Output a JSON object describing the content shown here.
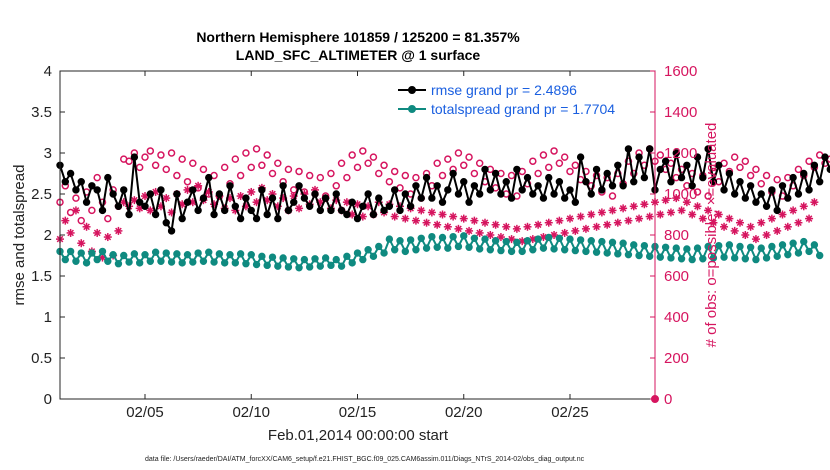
{
  "chart_data": {
    "type": "line",
    "title": "Northern Hemisphere 101859 / 125200 = 81.357%",
    "subtitle": "LAND_SFC_ALTIMETER @ 1 surface",
    "xlabel": "Feb.01,2014 00:00:00 start",
    "ylabel": "rmse and totalspread",
    "ylabel_right": "# of obs: o=possible; ×=evaluated",
    "ylim": [
      0,
      4
    ],
    "ylim_right": [
      0,
      1600
    ],
    "xlim": [
      1,
      29
    ],
    "yticks": [
      "0",
      "0.5",
      "1",
      "1.5",
      "2",
      "2.5",
      "3",
      "3.5",
      "4"
    ],
    "yticks_right": [
      "0",
      "200",
      "400",
      "600",
      "800",
      "1000",
      "1200",
      "1400",
      "1600"
    ],
    "xticks": [
      {
        "x": 5,
        "label": "02/05"
      },
      {
        "x": 10,
        "label": "02/10"
      },
      {
        "x": 15,
        "label": "02/15"
      },
      {
        "x": 20,
        "label": "02/20"
      },
      {
        "x": 25,
        "label": "02/25"
      }
    ],
    "legend_position": "top-right",
    "legend": [
      {
        "label": "rmse grand pr = 2.4896"
      },
      {
        "label": "totalspread grand pr = 1.7704"
      }
    ],
    "colors": {
      "rmse": "#000000",
      "spread": "#0f8a80",
      "obs": "#d6155f",
      "legend_text": "#1a5fe0"
    },
    "time_start": 1,
    "time_step": 0.25,
    "series": [
      {
        "name": "rmse grand pr = 2.4896",
        "axis": "left",
        "values": [
          2.85,
          2.65,
          2.75,
          2.55,
          2.65,
          2.4,
          2.6,
          2.55,
          2.3,
          2.7,
          2.5,
          2.35,
          2.55,
          2.25,
          2.95,
          2.4,
          2.35,
          2.5,
          2.25,
          2.55,
          2.15,
          2.05,
          2.5,
          2.2,
          2.4,
          2.55,
          2.3,
          2.45,
          2.7,
          2.25,
          2.5,
          2.3,
          2.6,
          2.35,
          2.2,
          2.45,
          2.3,
          2.2,
          2.55,
          2.25,
          2.45,
          2.2,
          2.6,
          2.3,
          2.4,
          2.6,
          2.45,
          2.35,
          2.5,
          2.3,
          2.45,
          2.3,
          2.5,
          2.3,
          2.25,
          2.4,
          2.2,
          2.35,
          2.5,
          2.25,
          2.45,
          2.3,
          2.35,
          2.55,
          2.3,
          2.5,
          2.35,
          2.6,
          2.45,
          2.7,
          2.45,
          2.6,
          2.4,
          2.55,
          2.75,
          2.5,
          2.65,
          2.4,
          2.6,
          2.5,
          2.8,
          2.55,
          2.75,
          2.5,
          2.65,
          2.45,
          2.8,
          2.55,
          2.7,
          2.5,
          2.6,
          2.45,
          2.7,
          2.5,
          2.65,
          2.45,
          2.55,
          2.4,
          2.95,
          2.65,
          2.5,
          2.8,
          2.55,
          2.75,
          2.6,
          2.85,
          2.6,
          3.05,
          2.65,
          2.95,
          2.7,
          3.05,
          2.55,
          2.8,
          2.9,
          2.65,
          3.0,
          2.7,
          2.85,
          2.6,
          2.95,
          2.7,
          3.05,
          2.65,
          2.85,
          2.55,
          2.75,
          2.5,
          2.65,
          2.45,
          2.6,
          2.4,
          2.5,
          2.35,
          2.55,
          2.3,
          2.6,
          2.45,
          2.7,
          2.5,
          2.75,
          2.55,
          2.85,
          2.65,
          2.95,
          2.8,
          2.9
        ]
      },
      {
        "name": "totalspread grand pr = 1.7704",
        "axis": "left",
        "values": [
          1.8,
          1.7,
          1.8,
          1.68,
          1.78,
          1.66,
          1.78,
          1.7,
          1.8,
          1.68,
          1.76,
          1.65,
          1.75,
          1.67,
          1.77,
          1.66,
          1.76,
          1.68,
          1.79,
          1.68,
          1.78,
          1.67,
          1.77,
          1.66,
          1.76,
          1.67,
          1.78,
          1.68,
          1.79,
          1.67,
          1.77,
          1.66,
          1.76,
          1.66,
          1.77,
          1.65,
          1.76,
          1.64,
          1.74,
          1.63,
          1.73,
          1.62,
          1.72,
          1.61,
          1.71,
          1.6,
          1.7,
          1.61,
          1.71,
          1.62,
          1.72,
          1.63,
          1.7,
          1.62,
          1.74,
          1.66,
          1.78,
          1.7,
          1.82,
          1.74,
          1.86,
          1.78,
          1.95,
          1.82,
          1.93,
          1.8,
          1.94,
          1.82,
          1.96,
          1.84,
          1.98,
          1.85,
          1.97,
          1.84,
          1.98,
          1.86,
          1.99,
          1.85,
          1.96,
          1.83,
          1.95,
          1.82,
          1.93,
          1.81,
          1.92,
          1.8,
          1.91,
          1.8,
          1.93,
          1.82,
          1.95,
          1.84,
          1.97,
          1.83,
          1.96,
          1.82,
          1.95,
          1.81,
          1.94,
          1.8,
          1.93,
          1.79,
          1.92,
          1.78,
          1.91,
          1.77,
          1.9,
          1.76,
          1.88,
          1.75,
          1.87,
          1.74,
          1.86,
          1.73,
          1.85,
          1.72,
          1.84,
          1.71,
          1.83,
          1.7,
          1.84,
          1.71,
          1.86,
          1.72,
          1.87,
          1.73,
          1.88,
          1.72,
          1.86,
          1.71,
          1.85,
          1.7,
          1.84,
          1.72,
          1.86,
          1.74,
          1.88,
          1.76,
          1.9,
          1.78,
          1.92,
          1.8,
          1.88,
          1.75
        ]
      },
      {
        "name": "possible",
        "axis": "right",
        "marker": "circle",
        "values": [
          960,
          1040,
          910,
          980,
          870,
          1010,
          920,
          1080,
          960,
          880,
          1020,
          940,
          1170,
          1160,
          1200,
          1130,
          1180,
          1210,
          1140,
          1190,
          1120,
          1200,
          1090,
          1170,
          1060,
          1150,
          1030,
          1120,
          1000,
          1090,
          990,
          1130,
          1050,
          1170,
          1090,
          1200,
          1130,
          1220,
          1140,
          1190,
          1100,
          1150,
          1060,
          1120,
          1020,
          1110,
          1010,
          1090,
          1000,
          1080,
          990,
          1100,
          1040,
          1150,
          1080,
          1190,
          1130,
          1210,
          1150,
          1180,
          1100,
          1140,
          1060,
          1110,
          1030,
          1090,
          1000,
          1080,
          980,
          1100,
          1040,
          1150,
          1090,
          1170,
          1120,
          1200,
          1140,
          1180,
          1100,
          1150,
          1060,
          1120,
          1030,
          1100,
          1000,
          1090,
          990,
          1110,
          1050,
          1160,
          1100,
          1190,
          1130,
          1210,
          1150,
          1180,
          1110,
          1140,
          1070,
          1110,
          1040,
          1090,
          1010,
          1080,
          990,
          1100,
          1050,
          1160,
          1100,
          1200,
          1140,
          1220,
          1160,
          1190,
          1120,
          1150,
          1080,
          1120,
          1040,
          1100,
          1010,
          1090,
          990,
          1110,
          1060,
          1150,
          1110,
          1180,
          1130,
          1160,
          1090,
          1120,
          1050,
          1090,
          1010,
          1070,
          990,
          1080,
          1040,
          1120,
          1090,
          1160,
          1130,
          1190,
          1150,
          1170
        ]
      },
      {
        "name": "evaluated",
        "axis": "right",
        "marker": "asterisk",
        "values": [
          780,
          870,
          810,
          920,
          760,
          840,
          720,
          810,
          690,
          790,
          700,
          820,
          960,
          940,
          970,
          930,
          990,
          920,
          1010,
          940,
          980,
          910,
          1000,
          950,
          1020,
          960,
          1040,
          970,
          1010,
          950,
          990,
          930,
          980,
          920,
          990,
          940,
          1010,
          960,
          1030,
          970,
          1000,
          940,
          980,
          920,
          990,
          930,
          1000,
          950,
          1020,
          960,
          980,
          930,
          970,
          920,
          960,
          900,
          950,
          890,
          940,
          900,
          960,
          910,
          950,
          890,
          940,
          880,
          930,
          870,
          920,
          860,
          910,
          850,
          900,
          840,
          890,
          830,
          880,
          820,
          870,
          810,
          860,
          800,
          850,
          790,
          840,
          780,
          830,
          770,
          840,
          780,
          850,
          790,
          860,
          800,
          870,
          810,
          880,
          820,
          890,
          830,
          900,
          840,
          910,
          850,
          920,
          860,
          930,
          870,
          940,
          880,
          950,
          890,
          960,
          900,
          970,
          910,
          980,
          920,
          960,
          900,
          940,
          880,
          920,
          860,
          900,
          840,
          880,
          820,
          860,
          800,
          840,
          780,
          860,
          800,
          880,
          820,
          900,
          840,
          920,
          860,
          940,
          880,
          960
        ]
      }
    ]
  },
  "footnote": "data file: /Users/raeder/DAI/ATM_forcXX/CAM6_setup/f.e21.FHIST_BGC.f09_025.CAM6assim.011/Diags_NTrS_2014-02/obs_diag_output.nc"
}
